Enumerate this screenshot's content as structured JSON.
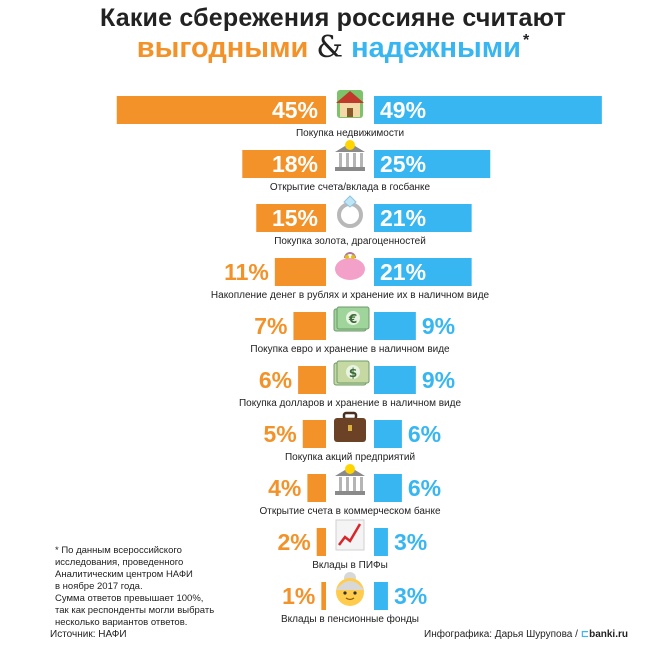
{
  "title": {
    "line1": "Какие сбережения россияне считают",
    "profitable": "выгодными",
    "amp": "&",
    "reliable": "надежными",
    "star": "*"
  },
  "colors": {
    "profitable": "#f39229",
    "reliable": "#38b6f1"
  },
  "chart_data": {
    "type": "bar",
    "title": "Какие сбережения россияне считают выгодными & надежными*",
    "unit": "%",
    "categories": [
      "Покупка недвижимости",
      "Открытие счета/вклада в госбанке",
      "Покупка золота, драгоценностей",
      "Накопление денег в рублях и хранение их в наличном виде",
      "Покупка евро и хранение в наличном виде",
      "Покупка долларов и хранение в наличном виде",
      "Покупка акций предприятий",
      "Открытие счета в коммерческом банке",
      "Вклады в ПИФы",
      "Вклады в пенсионные фонды"
    ],
    "icons": [
      "house-icon",
      "bank-icon",
      "ring-icon",
      "purse-icon",
      "euro-banknote-icon",
      "dollar-banknote-icon",
      "briefcase-icon",
      "bank-icon",
      "chart-up-icon",
      "old-woman-icon"
    ],
    "series": [
      {
        "name": "выгодными",
        "values": [
          45,
          18,
          15,
          11,
          7,
          6,
          5,
          4,
          2,
          1
        ]
      },
      {
        "name": "надежными",
        "values": [
          49,
          25,
          21,
          21,
          9,
          9,
          6,
          6,
          3,
          3
        ]
      }
    ],
    "value_labels": {
      "profitable": [
        "45%",
        "18%",
        "15%",
        "11%",
        "7%",
        "6%",
        "5%",
        "4%",
        "2%",
        "1%"
      ],
      "reliable": [
        "49%",
        "25%",
        "21%",
        "21%",
        "9%",
        "9%",
        "6%",
        "6%",
        "3%",
        "3%"
      ]
    }
  },
  "footnote": [
    "* По данным всероссийского",
    "исследования, проведенного",
    "Аналитическим центром НАФИ",
    "в ноябре 2017 года.",
    "Сумма ответов превышает 100%,",
    "так как респонденты могли выбрать",
    "несколько вариантов ответов."
  ],
  "source": "Источник: НАФИ",
  "credit": {
    "text": "Инфографика: Дарья Шурупова /",
    "logo_mark": "⊏",
    "logo": "banki.ru"
  }
}
